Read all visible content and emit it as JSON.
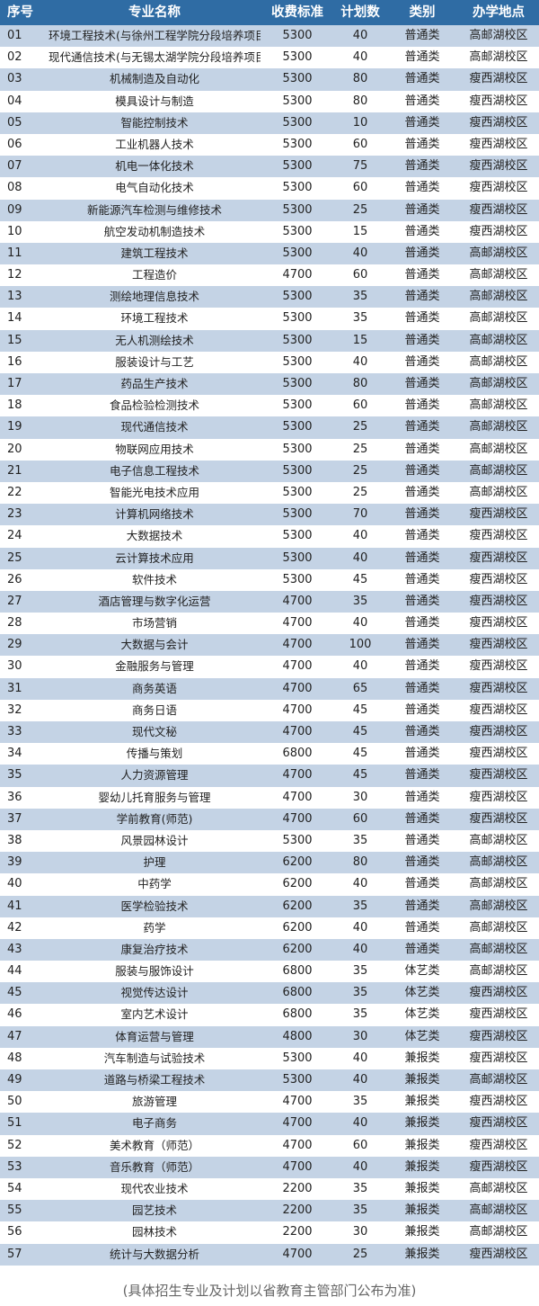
{
  "header": [
    "序号",
    "专业名称",
    "收费标准",
    "计划数",
    "类别",
    "办学地点"
  ],
  "rows": [
    [
      "01",
      "环境工程技术(与徐州工程学院分段培养项目)",
      "5300",
      "40",
      "普通类",
      "高邮湖校区"
    ],
    [
      "02",
      "现代通信技术(与无锡太湖学院分段培养项目)",
      "5300",
      "40",
      "普通类",
      "高邮湖校区"
    ],
    [
      "03",
      "机械制造及自动化",
      "5300",
      "80",
      "普通类",
      "瘦西湖校区"
    ],
    [
      "04",
      "模具设计与制造",
      "5300",
      "80",
      "普通类",
      "瘦西湖校区"
    ],
    [
      "05",
      "智能控制技术",
      "5300",
      "10",
      "普通类",
      "瘦西湖校区"
    ],
    [
      "06",
      "工业机器人技术",
      "5300",
      "60",
      "普通类",
      "瘦西湖校区"
    ],
    [
      "07",
      "机电一体化技术",
      "5300",
      "75",
      "普通类",
      "瘦西湖校区"
    ],
    [
      "08",
      "电气自动化技术",
      "5300",
      "60",
      "普通类",
      "瘦西湖校区"
    ],
    [
      "09",
      "新能源汽车检测与维修技术",
      "5300",
      "25",
      "普通类",
      "瘦西湖校区"
    ],
    [
      "10",
      "航空发动机制造技术",
      "5300",
      "15",
      "普通类",
      "瘦西湖校区"
    ],
    [
      "11",
      "建筑工程技术",
      "5300",
      "40",
      "普通类",
      "高邮湖校区"
    ],
    [
      "12",
      "工程造价",
      "4700",
      "60",
      "普通类",
      "高邮湖校区"
    ],
    [
      "13",
      "测绘地理信息技术",
      "5300",
      "35",
      "普通类",
      "高邮湖校区"
    ],
    [
      "14",
      "环境工程技术",
      "5300",
      "35",
      "普通类",
      "高邮湖校区"
    ],
    [
      "15",
      "无人机测绘技术",
      "5300",
      "15",
      "普通类",
      "高邮湖校区"
    ],
    [
      "16",
      "服装设计与工艺",
      "5300",
      "40",
      "普通类",
      "高邮湖校区"
    ],
    [
      "17",
      "药品生产技术",
      "5300",
      "80",
      "普通类",
      "高邮湖校区"
    ],
    [
      "18",
      "食品检验检测技术",
      "5300",
      "60",
      "普通类",
      "高邮湖校区"
    ],
    [
      "19",
      "现代通信技术",
      "5300",
      "25",
      "普通类",
      "高邮湖校区"
    ],
    [
      "20",
      "物联网应用技术",
      "5300",
      "25",
      "普通类",
      "高邮湖校区"
    ],
    [
      "21",
      "电子信息工程技术",
      "5300",
      "25",
      "普通类",
      "高邮湖校区"
    ],
    [
      "22",
      "智能光电技术应用",
      "5300",
      "25",
      "普通类",
      "高邮湖校区"
    ],
    [
      "23",
      "计算机网络技术",
      "5300",
      "70",
      "普通类",
      "瘦西湖校区"
    ],
    [
      "24",
      "大数据技术",
      "5300",
      "40",
      "普通类",
      "瘦西湖校区"
    ],
    [
      "25",
      "云计算技术应用",
      "5300",
      "40",
      "普通类",
      "瘦西湖校区"
    ],
    [
      "26",
      "软件技术",
      "5300",
      "45",
      "普通类",
      "瘦西湖校区"
    ],
    [
      "27",
      "酒店管理与数字化运营",
      "4700",
      "35",
      "普通类",
      "瘦西湖校区"
    ],
    [
      "28",
      "市场营销",
      "4700",
      "40",
      "普通类",
      "瘦西湖校区"
    ],
    [
      "29",
      "大数据与会计",
      "4700",
      "100",
      "普通类",
      "瘦西湖校区"
    ],
    [
      "30",
      "金融服务与管理",
      "4700",
      "40",
      "普通类",
      "瘦西湖校区"
    ],
    [
      "31",
      "商务英语",
      "4700",
      "65",
      "普通类",
      "瘦西湖校区"
    ],
    [
      "32",
      "商务日语",
      "4700",
      "45",
      "普通类",
      "瘦西湖校区"
    ],
    [
      "33",
      "现代文秘",
      "4700",
      "45",
      "普通类",
      "瘦西湖校区"
    ],
    [
      "34",
      "传播与策划",
      "6800",
      "45",
      "普通类",
      "瘦西湖校区"
    ],
    [
      "35",
      "人力资源管理",
      "4700",
      "45",
      "普通类",
      "瘦西湖校区"
    ],
    [
      "36",
      "婴幼儿托育服务与管理",
      "4700",
      "30",
      "普通类",
      "瘦西湖校区"
    ],
    [
      "37",
      "学前教育(师范)",
      "4700",
      "60",
      "普通类",
      "瘦西湖校区"
    ],
    [
      "38",
      "风景园林设计",
      "5300",
      "35",
      "普通类",
      "高邮湖校区"
    ],
    [
      "39",
      "护理",
      "6200",
      "80",
      "普通类",
      "高邮湖校区"
    ],
    [
      "40",
      "中药学",
      "6200",
      "40",
      "普通类",
      "高邮湖校区"
    ],
    [
      "41",
      "医学检验技术",
      "6200",
      "35",
      "普通类",
      "高邮湖校区"
    ],
    [
      "42",
      "药学",
      "6200",
      "40",
      "普通类",
      "高邮湖校区"
    ],
    [
      "43",
      "康复治疗技术",
      "6200",
      "40",
      "普通类",
      "高邮湖校区"
    ],
    [
      "44",
      "服装与服饰设计",
      "6800",
      "35",
      "体艺类",
      "高邮湖校区"
    ],
    [
      "45",
      "视觉传达设计",
      "6800",
      "35",
      "体艺类",
      "瘦西湖校区"
    ],
    [
      "46",
      "室内艺术设计",
      "6800",
      "35",
      "体艺类",
      "瘦西湖校区"
    ],
    [
      "47",
      "体育运营与管理",
      "4800",
      "30",
      "体艺类",
      "瘦西湖校区"
    ],
    [
      "48",
      "汽车制造与试验技术",
      "5300",
      "40",
      "兼报类",
      "瘦西湖校区"
    ],
    [
      "49",
      "道路与桥梁工程技术",
      "5300",
      "40",
      "兼报类",
      "高邮湖校区"
    ],
    [
      "50",
      "旅游管理",
      "4700",
      "35",
      "兼报类",
      "瘦西湖校区"
    ],
    [
      "51",
      "电子商务",
      "4700",
      "40",
      "兼报类",
      "瘦西湖校区"
    ],
    [
      "52",
      "美术教育（师范）",
      "4700",
      "60",
      "兼报类",
      "瘦西湖校区"
    ],
    [
      "53",
      "音乐教育（师范）",
      "4700",
      "40",
      "兼报类",
      "瘦西湖校区"
    ],
    [
      "54",
      "现代农业技术",
      "2200",
      "35",
      "兼报类",
      "高邮湖校区"
    ],
    [
      "55",
      "园艺技术",
      "2200",
      "35",
      "兼报类",
      "高邮湖校区"
    ],
    [
      "56",
      "园林技术",
      "2200",
      "30",
      "兼报类",
      "高邮湖校区"
    ],
    [
      "57",
      "统计与大数据分析",
      "4700",
      "25",
      "兼报类",
      "瘦西湖校区"
    ]
  ],
  "footer_note": "(具体招生专业及计划以省教育主管部门公布为准)",
  "colors": {
    "header_bg": "#2f6ca4",
    "header_text": "#ffffff",
    "alt_row_bg": "#c4d3e5",
    "row_bg": "#ffffff"
  }
}
